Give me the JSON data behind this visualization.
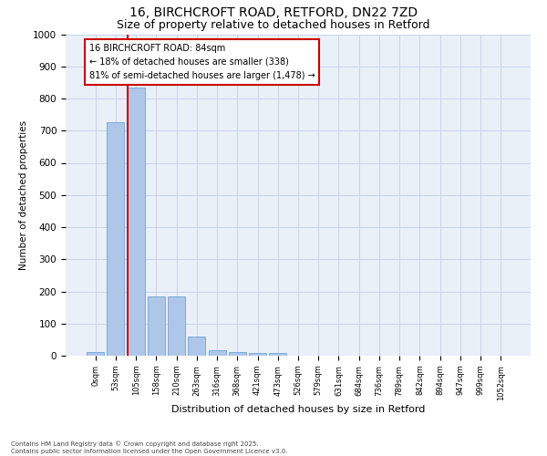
{
  "title_line1": "16, BIRCHCROFT ROAD, RETFORD, DN22 7ZD",
  "title_line2": "Size of property relative to detached houses in Retford",
  "xlabel": "Distribution of detached houses by size in Retford",
  "ylabel": "Number of detached properties",
  "bar_labels": [
    "0sqm",
    "53sqm",
    "105sqm",
    "158sqm",
    "210sqm",
    "263sqm",
    "316sqm",
    "368sqm",
    "421sqm",
    "473sqm",
    "526sqm",
    "579sqm",
    "631sqm",
    "684sqm",
    "736sqm",
    "789sqm",
    "842sqm",
    "894sqm",
    "947sqm",
    "999sqm",
    "1052sqm"
  ],
  "bar_values": [
    10,
    725,
    835,
    183,
    183,
    60,
    18,
    12,
    8,
    8,
    0,
    0,
    0,
    0,
    0,
    0,
    0,
    0,
    0,
    0,
    0
  ],
  "bar_color": "#aec6e8",
  "bar_edge_color": "#5b9bd5",
  "vline_x": 1.58,
  "annotation_text": "16 BIRCHCROFT ROAD: 84sqm\n← 18% of detached houses are smaller (338)\n81% of semi-detached houses are larger (1,478) →",
  "annotation_box_color": "#ffffff",
  "annotation_box_edgecolor": "#cc0000",
  "vline_color": "#cc0000",
  "ylim": [
    0,
    1000
  ],
  "yticks": [
    0,
    100,
    200,
    300,
    400,
    500,
    600,
    700,
    800,
    900,
    1000
  ],
  "footnote": "Contains HM Land Registry data © Crown copyright and database right 2025.\nContains public sector information licensed under the Open Government Licence v3.0.",
  "bg_color": "#ffffff",
  "plot_bg_color": "#eaf0f8",
  "grid_color": "#c8d4e8",
  "title_fontsize": 10,
  "subtitle_fontsize": 9,
  "annot_fontsize": 7,
  "ylabel_fontsize": 7.5,
  "xlabel_fontsize": 8,
  "tick_fontsize": 6,
  "ytick_fontsize": 7.5,
  "footnote_fontsize": 5
}
